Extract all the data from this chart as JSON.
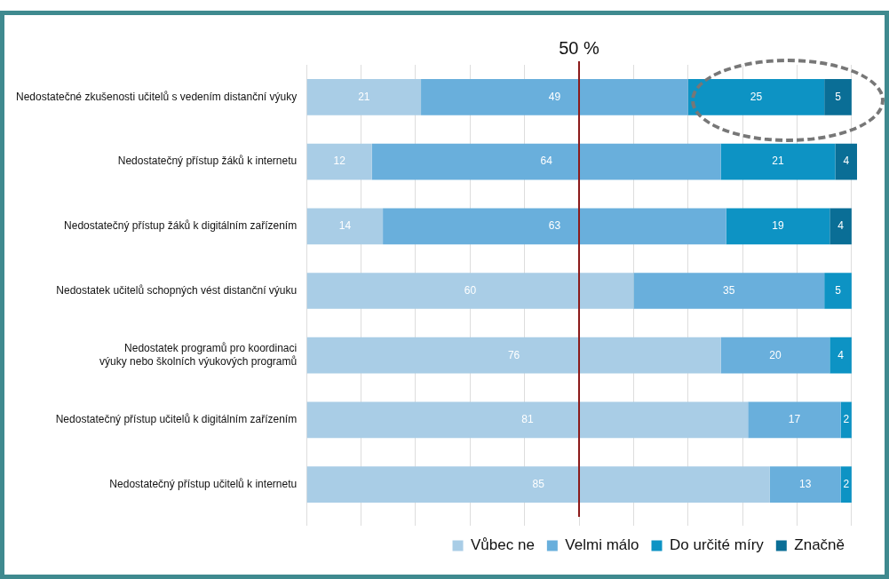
{
  "chart_data": {
    "type": "bar",
    "orientation": "horizontal",
    "stacked": true,
    "categories": [
      "Nedostatečné zkušenosti učitelů s vedením distanční výuky",
      "Nedostatečný přístup žáků k internetu",
      "Nedostatečný přístup žáků k digitálním zařízením",
      "Nedostatek učitelů schopných vést distanční výuku",
      "Nedostatek programů pro koordinaci výuky nebo školních výukových programů",
      "Nedostatečný přístup učitelů k digitálním zařízením",
      "Nedostatečný přístup učitelů k internetu"
    ],
    "series": [
      {
        "name": "Vůbec ne",
        "color": "#a9cde6",
        "values": [
          21,
          12,
          14,
          60,
          76,
          81,
          85
        ]
      },
      {
        "name": "Velmi málo",
        "color": "#69afdc",
        "values": [
          49,
          64,
          63,
          35,
          20,
          17,
          13
        ]
      },
      {
        "name": "Do určité míry",
        "color": "#0d93c4",
        "values": [
          25,
          21,
          19,
          5,
          4,
          2,
          2
        ]
      },
      {
        "name": "Značně",
        "color": "#0a6e96",
        "values": [
          5,
          4,
          4,
          null,
          null,
          null,
          null
        ]
      }
    ],
    "xlim": [
      0,
      101
    ],
    "xticks": [
      {
        "value": 0,
        "label": null
      },
      {
        "value": 10,
        "label": null
      },
      {
        "value": 20,
        "label": null
      },
      {
        "value": 30,
        "label": null
      },
      {
        "value": 40,
        "label": null
      },
      {
        "value": 50,
        "label": null
      },
      {
        "value": 60,
        "label": null
      },
      {
        "value": 70,
        "label": null
      },
      {
        "value": 80,
        "label": null
      },
      {
        "value": 90,
        "label": null
      },
      {
        "value": 100,
        "label": null
      }
    ],
    "tick_labels": "y",
    "grid": "x",
    "legend": "bottom",
    "data_labels": true,
    "ref_lines": [
      {
        "axis": "x",
        "value": 50,
        "label": "50 %",
        "color": "#8b1a1a"
      }
    ]
  }
}
